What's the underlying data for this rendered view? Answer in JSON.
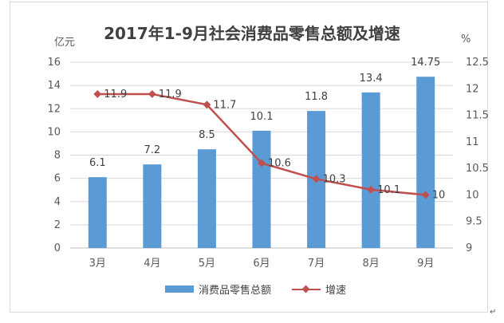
{
  "chart_data": {
    "type": "bar+line",
    "title": "2017年1-9月社会消费品零售总额及增速",
    "ylabel_left": "亿元",
    "ylabel_right": "%",
    "categories": [
      "3月",
      "4月",
      "5月",
      "6月",
      "7月",
      "8月",
      "9月"
    ],
    "ylim_left": [
      0,
      16
    ],
    "yticks_left": [
      0,
      2,
      4,
      6,
      8,
      10,
      12,
      14,
      16
    ],
    "ylim_right": [
      9,
      12.5
    ],
    "yticks_right": [
      "9",
      "9.5",
      "10",
      "10.5",
      "11",
      "11.5",
      "12",
      "12.5"
    ],
    "series": [
      {
        "name": "消费品零售总额",
        "type": "bar",
        "axis": "left",
        "color": "#5b9bd5",
        "values": [
          6.1,
          7.2,
          8.5,
          10.1,
          11.8,
          13.4,
          14.75
        ]
      },
      {
        "name": "增速",
        "type": "line",
        "axis": "right",
        "color": "#c0504d",
        "values": [
          11.9,
          11.9,
          11.7,
          10.6,
          10.3,
          10.1,
          10
        ]
      }
    ],
    "legend": "bottom",
    "grid": true
  }
}
